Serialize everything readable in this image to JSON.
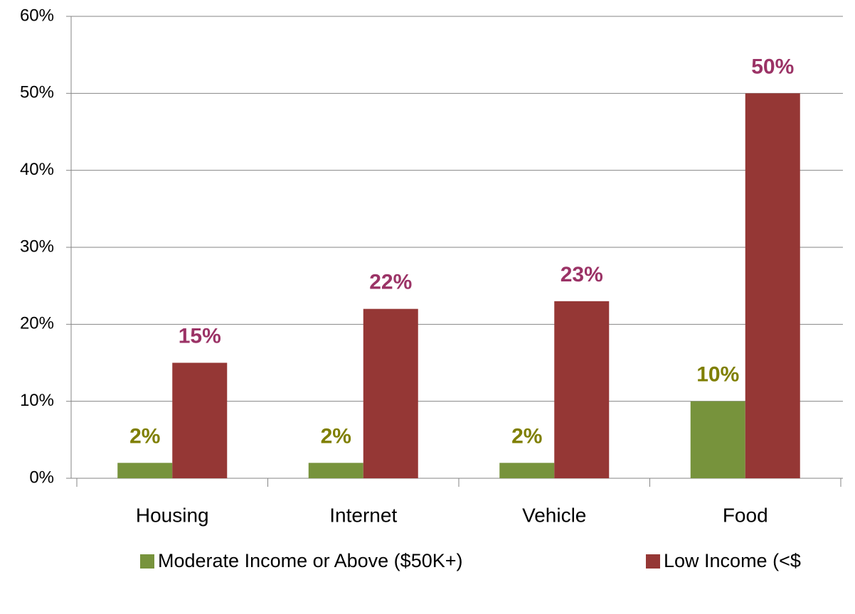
{
  "chart_data": {
    "type": "bar",
    "categories": [
      "Housing",
      "Internet",
      "Vehicle",
      "Food"
    ],
    "series": [
      {
        "name": "Moderate Income or Above ($50K+)",
        "color": "#77933c",
        "label_color": "#7f7f00",
        "values": [
          2,
          2,
          2,
          10
        ],
        "value_labels": [
          "2%",
          "2%",
          "2%",
          "10%"
        ]
      },
      {
        "name": "Low Income (<$",
        "color": "#953735",
        "label_color": "#9b3366",
        "values": [
          15,
          22,
          23,
          50
        ],
        "value_labels": [
          "15%",
          "22%",
          "23%",
          "50%"
        ]
      }
    ],
    "ylim": [
      0,
      60
    ],
    "yticks": [
      {
        "value": 0,
        "label": "0%"
      },
      {
        "value": 10,
        "label": "10%"
      },
      {
        "value": 20,
        "label": "20%"
      },
      {
        "value": 30,
        "label": "30%"
      },
      {
        "value": 40,
        "label": "40%"
      },
      {
        "value": 50,
        "label": "50%"
      },
      {
        "value": 60,
        "label": "60%"
      }
    ],
    "grid": true,
    "legend": "bottom"
  }
}
